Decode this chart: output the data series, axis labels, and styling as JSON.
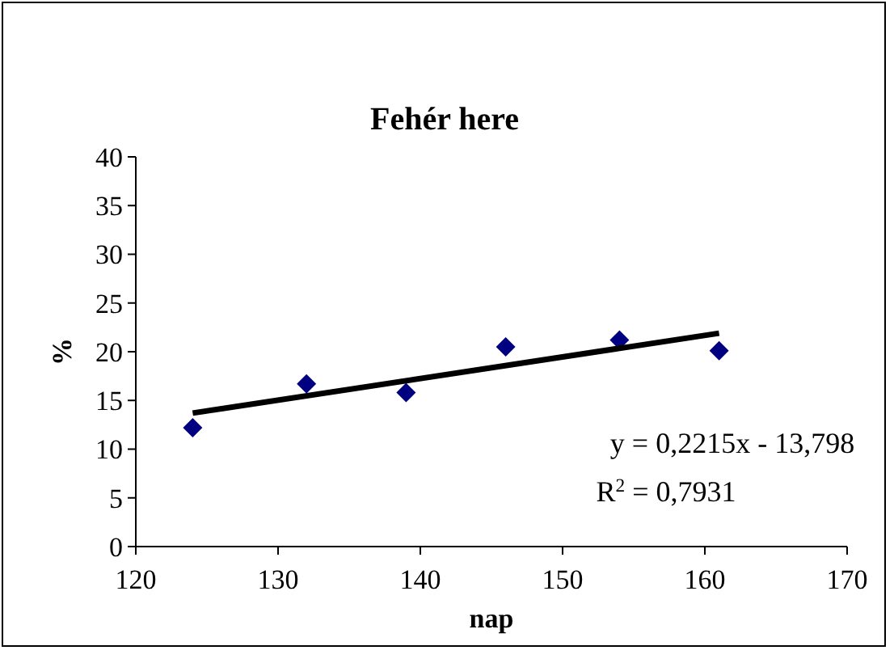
{
  "chart_data": {
    "type": "scatter",
    "title": "Fehér here",
    "xlabel": "nap",
    "ylabel": "%",
    "xlim": [
      120,
      170
    ],
    "xticks": [
      120,
      130,
      140,
      150,
      160,
      170
    ],
    "ylim": [
      0,
      40
    ],
    "yticks": [
      0,
      5,
      10,
      15,
      20,
      25,
      30,
      35,
      40
    ],
    "marker": "diamond",
    "grid": false,
    "series": [
      {
        "color": "#000080",
        "x": [
          124,
          132,
          139,
          146,
          154,
          161
        ],
        "values": [
          12.2,
          16.7,
          15.8,
          20.5,
          21.2,
          20.1
        ]
      },
      {
        "type": "line",
        "marker": "none",
        "color": "#000000",
        "x": [
          124,
          161
        ],
        "values": [
          13.7,
          21.9
        ]
      }
    ],
    "annotations": [
      "y = 0,2215x - 13,798",
      "R$^{2}$ = 0,7931"
    ]
  }
}
